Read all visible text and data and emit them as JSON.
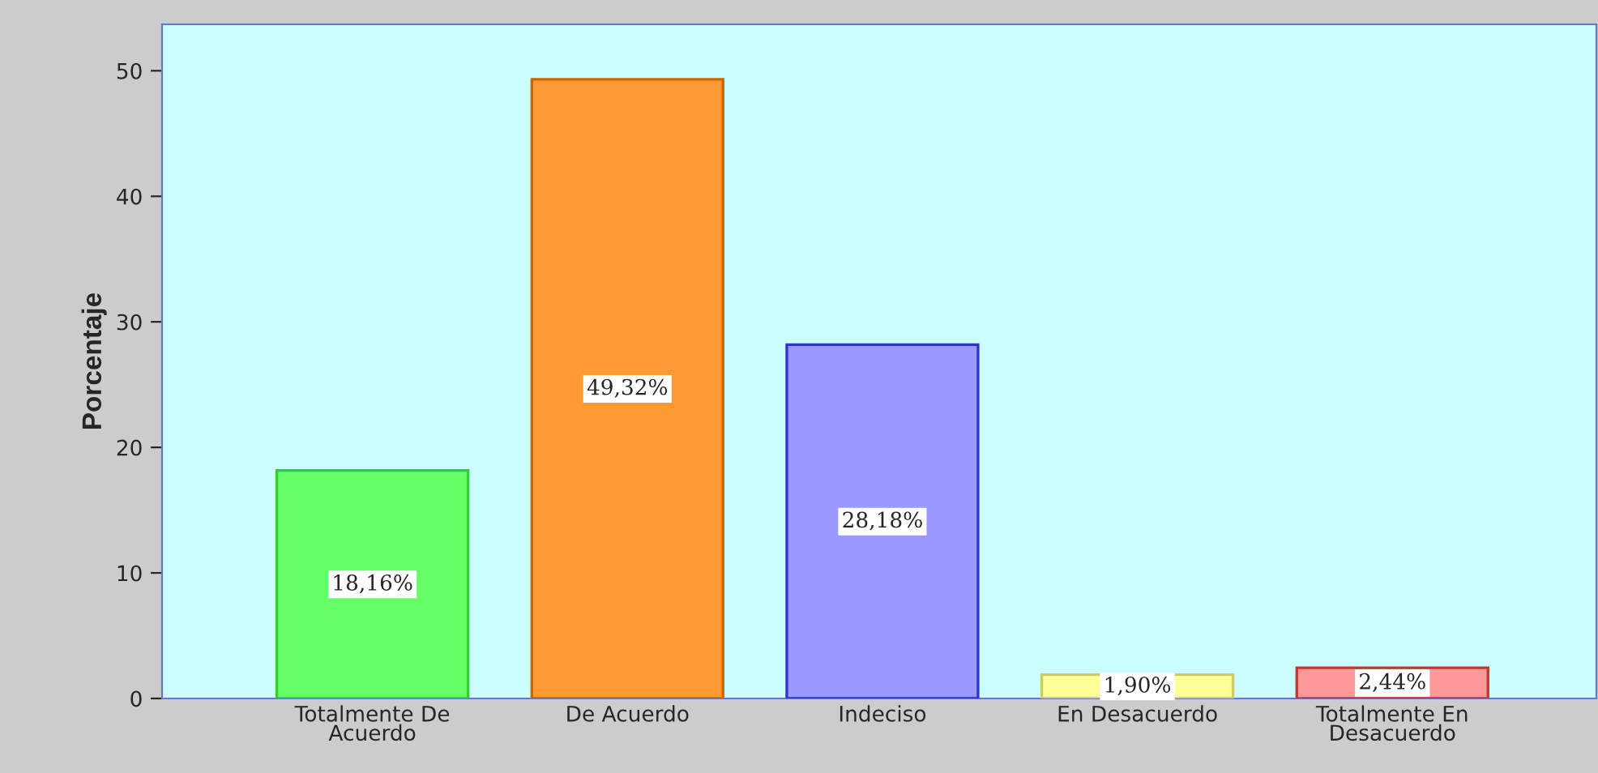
{
  "chart_data": {
    "type": "bar",
    "ylabel": "Porcentaje",
    "categories": [
      "Totalmente De\nAcuerdo",
      "De Acuerdo",
      "Indeciso",
      "En Desacuerdo",
      "Totalmente En\nDesacuerdo"
    ],
    "values": [
      18.16,
      49.32,
      28.18,
      1.9,
      2.44
    ],
    "colors": [
      "#66ff66",
      "#ff9933",
      "#9999ff",
      "#ffff99",
      "#ff9999"
    ],
    "value_labels": [
      "18,16%",
      "49,32%",
      "28,18%",
      "1,90%",
      "2,44%"
    ],
    "ylim": [
      0,
      53.7
    ],
    "yticks": [
      0,
      10,
      20,
      30,
      40,
      50
    ],
    "grid": false,
    "legend": false
  }
}
